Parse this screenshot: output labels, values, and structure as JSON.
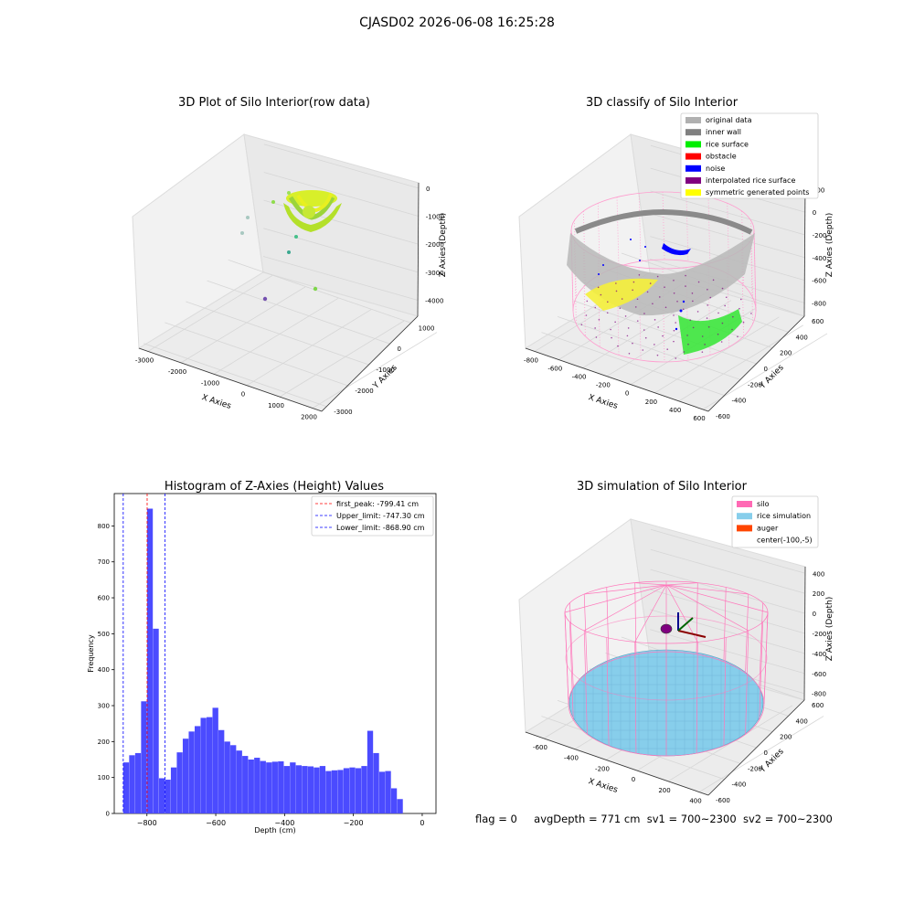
{
  "suptitle": "CJASD02 2026-06-08 16:25:28",
  "panels": {
    "raw": {
      "title": "3D Plot of Silo Interior(row data)",
      "xlabel": "X Axies",
      "ylabel": "Y Axies",
      "zlabel": "Z Axies (Depth)",
      "xticks": [
        "-3000",
        "-2000",
        "-1000",
        "0",
        "1000",
        "2000"
      ],
      "yticks": [
        "1000",
        "0",
        "-1000",
        "-2000",
        "-3000"
      ],
      "zticks": [
        "0",
        "-1000",
        "-2000",
        "-3000",
        "-4000"
      ]
    },
    "classify": {
      "title": "3D classify of Silo Interior",
      "xlabel": "X Axies",
      "ylabel": "Y Axies",
      "zlabel": "Z Axies (Depth)",
      "xticks": [
        "-800",
        "-600",
        "-400",
        "-200",
        "0",
        "200",
        "400",
        "600"
      ],
      "yticks": [
        "600",
        "400",
        "200",
        "0",
        "-200",
        "-400",
        "-600"
      ],
      "zticks": [
        "200",
        "0",
        "-200",
        "-400",
        "-600",
        "-800"
      ],
      "legend": [
        {
          "label": "original data",
          "color": "#b0b0b0"
        },
        {
          "label": "inner wall",
          "color": "#808080"
        },
        {
          "label": "rice surface",
          "color": "#00ee00"
        },
        {
          "label": "obstacle",
          "color": "#ff0000"
        },
        {
          "label": "noise",
          "color": "#0000ff"
        },
        {
          "label": "interpolated rice surface",
          "color": "#800080"
        },
        {
          "label": "symmetric generated points",
          "color": "#ffff00"
        }
      ]
    },
    "simulation": {
      "title": "3D simulation of Silo Interior",
      "xlabel": "X Axies",
      "ylabel": "Y Axies",
      "zlabel": "Z Axies (Depth)",
      "xticks": [
        "-600",
        "-400",
        "-200",
        "0",
        "200",
        "400"
      ],
      "yticks": [
        "600",
        "400",
        "200",
        "0",
        "-200",
        "-400",
        "-600"
      ],
      "zticks": [
        "400",
        "200",
        "0",
        "-200",
        "-400",
        "-600",
        "-800"
      ],
      "legend": [
        {
          "label": "silo",
          "color": "#ff69b4"
        },
        {
          "label": "rice simulation",
          "color": "#87ceeb"
        },
        {
          "label": "auger",
          "color": "#ff4500"
        },
        {
          "label": "center(-100,-5)",
          "color": ""
        }
      ]
    }
  },
  "chart_data": {
    "type": "bar",
    "title": "Histogram of Z-Axies (Height) Values",
    "xlabel": "Depth (cm)",
    "ylabel": "Frequency",
    "xlim": [
      -895,
      40
    ],
    "ylim": [
      0,
      890
    ],
    "xticks": [
      -800,
      -600,
      -400,
      -200,
      0
    ],
    "yticks": [
      0,
      100,
      200,
      300,
      400,
      500,
      600,
      700,
      800
    ],
    "bin_width": 17.3,
    "bin_start": -868.9,
    "values": [
      142,
      162,
      168,
      312,
      848,
      514,
      98,
      94,
      128,
      170,
      208,
      228,
      243,
      266,
      268,
      294,
      232,
      200,
      190,
      175,
      160,
      150,
      155,
      146,
      142,
      144,
      145,
      132,
      142,
      134,
      132,
      131,
      128,
      132,
      118,
      120,
      121,
      126,
      128,
      126,
      132,
      230,
      168,
      116,
      118,
      70,
      40
    ],
    "lines": [
      {
        "label": "first_peak: -799.41 cm",
        "value": -799.41,
        "color": "#ff0000"
      },
      {
        "label": "Upper_limit: -747.30 cm",
        "value": -747.3,
        "color": "#0000ff"
      },
      {
        "label": "Lower_limit: -868.90 cm",
        "value": -868.9,
        "color": "#0000ff"
      }
    ],
    "bar_color": "#4b4bff"
  },
  "footer": {
    "flag": "flag = 0",
    "avg": "avgDepth = 771 cm",
    "sv1": "sv1 = 700~2300",
    "sv2": "sv2 = 700~2300"
  }
}
